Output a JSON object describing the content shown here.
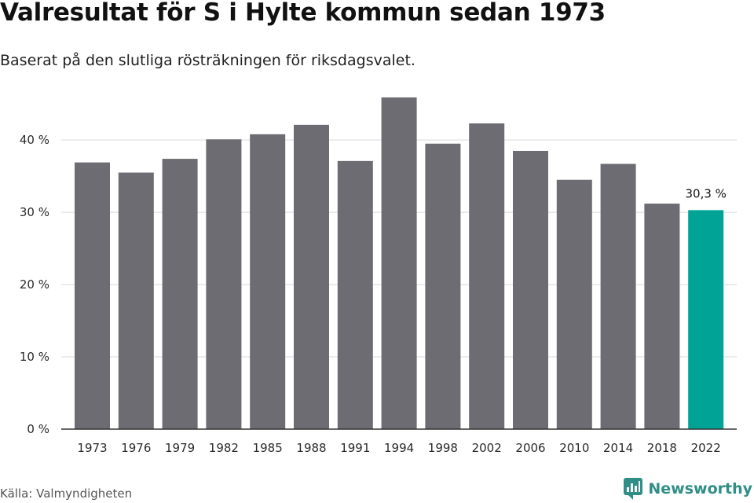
{
  "header": {
    "title": "Valresultat för S i Hylte kommun sedan 1973",
    "subtitle": "Baserat på den slutliga rösträkningen för riksdagsvalet."
  },
  "footer": {
    "source": "Källa: Valmyndigheten",
    "brand": "Newsworthy"
  },
  "colors": {
    "bar": "#6d6c72",
    "highlight": "#00a396",
    "grid": "#d9d9d9",
    "axis": "#333333",
    "brand": "#2f8f86"
  },
  "chart_data": {
    "type": "bar",
    "title": "Valresultat för S i Hylte kommun sedan 1973",
    "xlabel": "",
    "ylabel": "",
    "categories": [
      "1973",
      "1976",
      "1979",
      "1982",
      "1985",
      "1988",
      "1991",
      "1994",
      "1998",
      "2002",
      "2006",
      "2010",
      "2014",
      "2018",
      "2022"
    ],
    "values": [
      36.9,
      35.5,
      37.4,
      40.1,
      40.8,
      42.1,
      37.1,
      45.9,
      39.5,
      42.3,
      38.5,
      34.5,
      36.7,
      31.2,
      30.3
    ],
    "ylim": [
      0,
      46
    ],
    "yticks": [
      0,
      10,
      20,
      30,
      40
    ],
    "ytick_labels": [
      "0 %",
      "10 %",
      "20 %",
      "30 %",
      "40 %"
    ],
    "highlight_index": 14,
    "data_labels": [
      {
        "index": 14,
        "text": "30,3 %"
      }
    ],
    "grid": true
  }
}
